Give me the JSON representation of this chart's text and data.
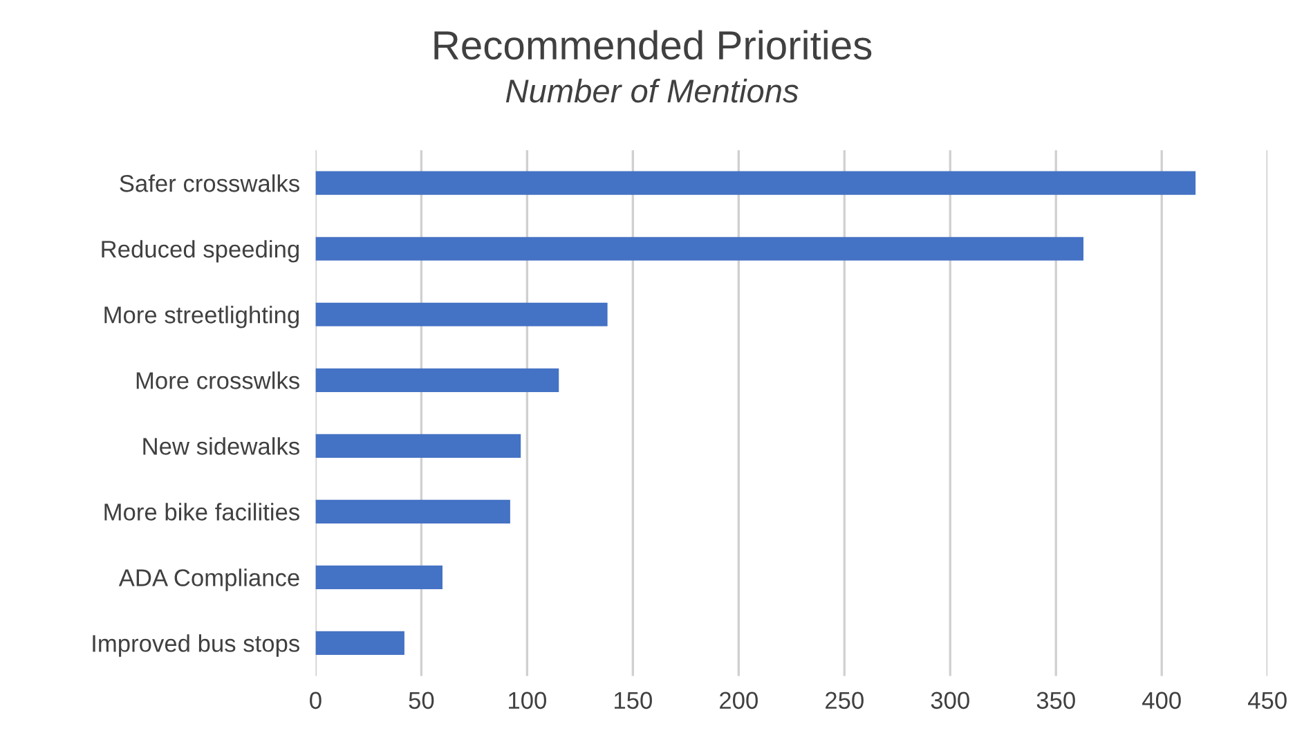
{
  "chart_data": {
    "type": "bar",
    "orientation": "horizontal",
    "title": "Recommended Priorities",
    "subtitle": "Number of Mentions",
    "categories": [
      "Safer crosswalks",
      "Reduced speeding",
      "More streetlighting",
      "More crosswlks",
      "New sidewalks",
      "More bike facilities",
      "ADA Compliance",
      "Improved bus stops"
    ],
    "values": [
      416,
      363,
      138,
      115,
      97,
      92,
      60,
      42
    ],
    "color": "#4472c4",
    "xlim": [
      0,
      450
    ],
    "xticks": [
      0,
      50,
      100,
      150,
      200,
      250,
      300,
      350,
      400,
      450
    ],
    "grid": "x",
    "legend": false
  }
}
